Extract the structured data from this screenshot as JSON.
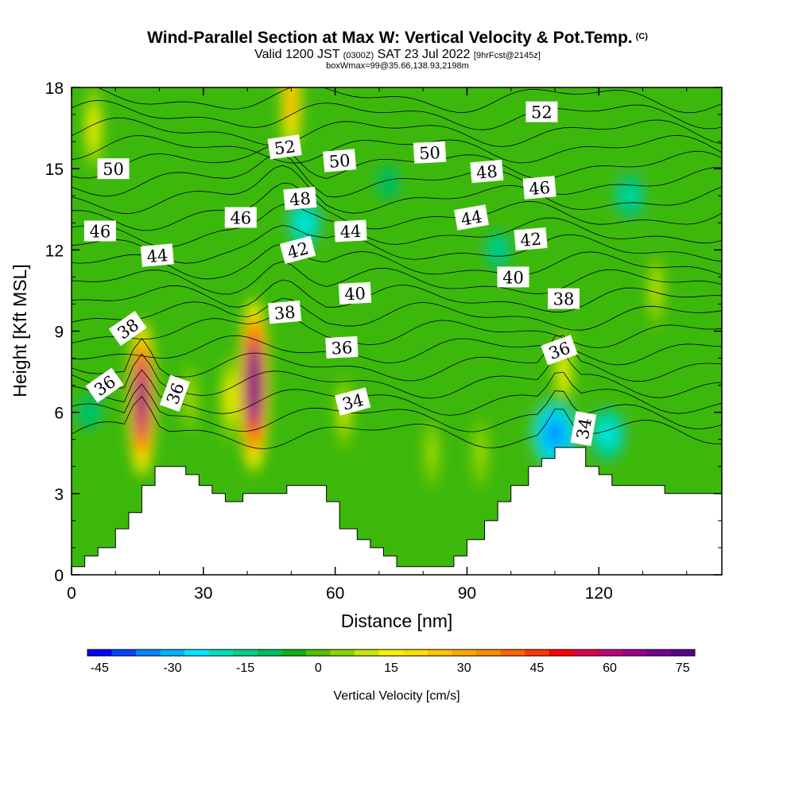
{
  "chart_data": {
    "type": "heatmap",
    "title": "Wind-Parallel Section at Max W: Vertical Velocity & Pot.Temp.",
    "title_mark": "(C)",
    "subtitle_main_a": "Valid 1200 JST",
    "subtitle_small_a": "(0300Z)",
    "subtitle_main_b": "SAT 23 Jul 2022",
    "subtitle_small_b": "[9hrFcst@2145z]",
    "subtitle2": "boxWmax=99@35.66,138.93,2198m",
    "xlabel": "Distance [nm]",
    "ylabel": "Height [Kft MSL]",
    "xlim": [
      0,
      148
    ],
    "ylim": [
      0,
      18
    ],
    "x_ticks": [
      0,
      30,
      60,
      90,
      120
    ],
    "y_ticks": [
      0,
      3,
      6,
      9,
      12,
      15,
      18
    ],
    "colorbar": {
      "label": "Vertical Velocity [cm/s]",
      "range": [
        -45,
        80
      ],
      "tick_values": [
        -45,
        -30,
        -15,
        0,
        15,
        30,
        45,
        60,
        75
      ],
      "colors": [
        "#0000ff",
        "#0044ff",
        "#0088ff",
        "#00b4ff",
        "#00e8ff",
        "#00e0b8",
        "#00d28a",
        "#00c05a",
        "#10b010",
        "#54c000",
        "#8cd400",
        "#c8e600",
        "#f4f400",
        "#ffe000",
        "#ffc400",
        "#ffa800",
        "#ff8c00",
        "#ff6400",
        "#ff3800",
        "#ff0000",
        "#e0004a",
        "#c0007a",
        "#9a0090",
        "#7a0090",
        "#5a0088"
      ]
    },
    "velocity_features": [
      {
        "x": 16,
        "y": 6.5,
        "w": 75,
        "desc": "updraft"
      },
      {
        "x": 41.5,
        "y": 7.0,
        "w": 90,
        "desc": "updraft core"
      },
      {
        "x": 50,
        "y": 17.5,
        "w": 35,
        "desc": "upper updraft"
      },
      {
        "x": 36,
        "y": 6.5,
        "w": 20,
        "desc": "updraft"
      },
      {
        "x": 27,
        "y": 6.5,
        "w": 10,
        "desc": "weak updraft"
      },
      {
        "x": 62,
        "y": 6.0,
        "w": 15,
        "desc": "updraft"
      },
      {
        "x": 112,
        "y": 7.5,
        "w": 20,
        "desc": "updraft"
      },
      {
        "x": 5,
        "y": 16.5,
        "w": 20,
        "desc": "updraft"
      },
      {
        "x": 110,
        "y": 5.2,
        "w": -35,
        "desc": "downdraft"
      },
      {
        "x": 122,
        "y": 5.2,
        "w": -25,
        "desc": "downdraft"
      },
      {
        "x": 53,
        "y": 13.0,
        "w": -22,
        "desc": "downdraft"
      },
      {
        "x": 127,
        "y": 14.0,
        "w": -18,
        "desc": "downdraft"
      },
      {
        "x": 97,
        "y": 12.0,
        "w": -14,
        "desc": "downdraft"
      },
      {
        "x": 72,
        "y": 14.5,
        "w": -10,
        "desc": "downdraft"
      },
      {
        "x": 4,
        "y": 6.0,
        "w": -12,
        "desc": "downdraft"
      },
      {
        "x": 133,
        "y": 10.5,
        "w": 14,
        "desc": "weak updraft"
      },
      {
        "x": 82,
        "y": 4.5,
        "w": 10,
        "desc": "weak updraft"
      },
      {
        "x": 93,
        "y": 4.5,
        "w": 10,
        "desc": "weak updraft"
      }
    ],
    "terrain": [
      [
        0,
        0.3
      ],
      [
        3,
        0.3
      ],
      [
        3,
        0.7
      ],
      [
        6,
        0.7
      ],
      [
        6,
        1.0
      ],
      [
        10,
        1.0
      ],
      [
        10,
        1.7
      ],
      [
        13,
        1.7
      ],
      [
        13,
        2.3
      ],
      [
        16,
        2.3
      ],
      [
        16,
        3.3
      ],
      [
        19,
        3.3
      ],
      [
        19,
        4.0
      ],
      [
        26,
        4.0
      ],
      [
        26,
        3.7
      ],
      [
        29,
        3.7
      ],
      [
        29,
        3.3
      ],
      [
        32,
        3.3
      ],
      [
        32,
        3.0
      ],
      [
        35,
        3.0
      ],
      [
        35,
        2.7
      ],
      [
        39,
        2.7
      ],
      [
        39,
        3.0
      ],
      [
        49,
        3.0
      ],
      [
        49,
        3.3
      ],
      [
        58,
        3.3
      ],
      [
        58,
        2.7
      ],
      [
        61,
        2.7
      ],
      [
        61,
        1.7
      ],
      [
        65,
        1.7
      ],
      [
        65,
        1.3
      ],
      [
        68,
        1.3
      ],
      [
        68,
        1.0
      ],
      [
        71,
        1.0
      ],
      [
        71,
        0.7
      ],
      [
        74,
        0.7
      ],
      [
        74,
        0.3
      ],
      [
        87,
        0.3
      ],
      [
        87,
        0.7
      ],
      [
        90,
        0.7
      ],
      [
        90,
        1.3
      ],
      [
        94,
        1.3
      ],
      [
        94,
        2.0
      ],
      [
        97,
        2.0
      ],
      [
        97,
        2.7
      ],
      [
        100,
        2.7
      ],
      [
        100,
        3.3
      ],
      [
        104,
        3.3
      ],
      [
        104,
        4.0
      ],
      [
        107,
        4.0
      ],
      [
        107,
        4.3
      ],
      [
        110,
        4.3
      ],
      [
        110,
        4.7
      ],
      [
        117,
        4.7
      ],
      [
        117,
        4.0
      ],
      [
        120,
        4.0
      ],
      [
        120,
        3.7
      ],
      [
        123,
        3.7
      ],
      [
        123,
        3.3
      ],
      [
        135,
        3.3
      ],
      [
        135,
        3.0
      ],
      [
        148,
        3.0
      ]
    ],
    "theta_contours": {
      "levels": [
        34,
        35,
        36,
        37,
        38,
        39,
        40,
        41,
        42,
        43,
        44,
        45,
        46,
        47,
        48,
        49,
        50,
        51,
        52,
        53,
        54
      ],
      "labels": [
        {
          "text": "36",
          "x": 7.5,
          "y": 7.0,
          "angle": -35
        },
        {
          "text": "38",
          "x": 12.8,
          "y": 9.1,
          "angle": -35
        },
        {
          "text": "44",
          "x": 19.5,
          "y": 11.8,
          "angle": -5
        },
        {
          "text": "46",
          "x": 6.5,
          "y": 12.7,
          "angle": 0
        },
        {
          "text": "50",
          "x": 9.5,
          "y": 15.0,
          "angle": 0
        },
        {
          "text": "36",
          "x": 23.5,
          "y": 6.7,
          "angle": -70
        },
        {
          "text": "46",
          "x": 38.5,
          "y": 13.2,
          "angle": 0
        },
        {
          "text": "52",
          "x": 48.5,
          "y": 15.8,
          "angle": -8
        },
        {
          "text": "48",
          "x": 52.0,
          "y": 13.9,
          "angle": -5
        },
        {
          "text": "42",
          "x": 51.5,
          "y": 12.0,
          "angle": -15
        },
        {
          "text": "38",
          "x": 48.5,
          "y": 9.7,
          "angle": -5
        },
        {
          "text": "50",
          "x": 61.0,
          "y": 15.3,
          "angle": -5
        },
        {
          "text": "44",
          "x": 63.5,
          "y": 12.7,
          "angle": -3
        },
        {
          "text": "40",
          "x": 64.5,
          "y": 10.4,
          "angle": -3
        },
        {
          "text": "36",
          "x": 61.5,
          "y": 8.4,
          "angle": -3
        },
        {
          "text": "34",
          "x": 64.0,
          "y": 6.4,
          "angle": -15
        },
        {
          "text": "50",
          "x": 81.5,
          "y": 15.6,
          "angle": -3
        },
        {
          "text": "48",
          "x": 94.5,
          "y": 14.9,
          "angle": -5
        },
        {
          "text": "44",
          "x": 91.0,
          "y": 13.2,
          "angle": -10
        },
        {
          "text": "52",
          "x": 107.0,
          "y": 17.1,
          "angle": 0
        },
        {
          "text": "46",
          "x": 106.5,
          "y": 14.3,
          "angle": -5
        },
        {
          "text": "42",
          "x": 104.5,
          "y": 12.4,
          "angle": -5
        },
        {
          "text": "40",
          "x": 100.5,
          "y": 11.0,
          "angle": 0
        },
        {
          "text": "38",
          "x": 112.0,
          "y": 10.2,
          "angle": 0
        },
        {
          "text": "36",
          "x": 111.0,
          "y": 8.3,
          "angle": -20
        },
        {
          "text": "34",
          "x": 116.5,
          "y": 5.4,
          "angle": -80
        }
      ]
    }
  }
}
